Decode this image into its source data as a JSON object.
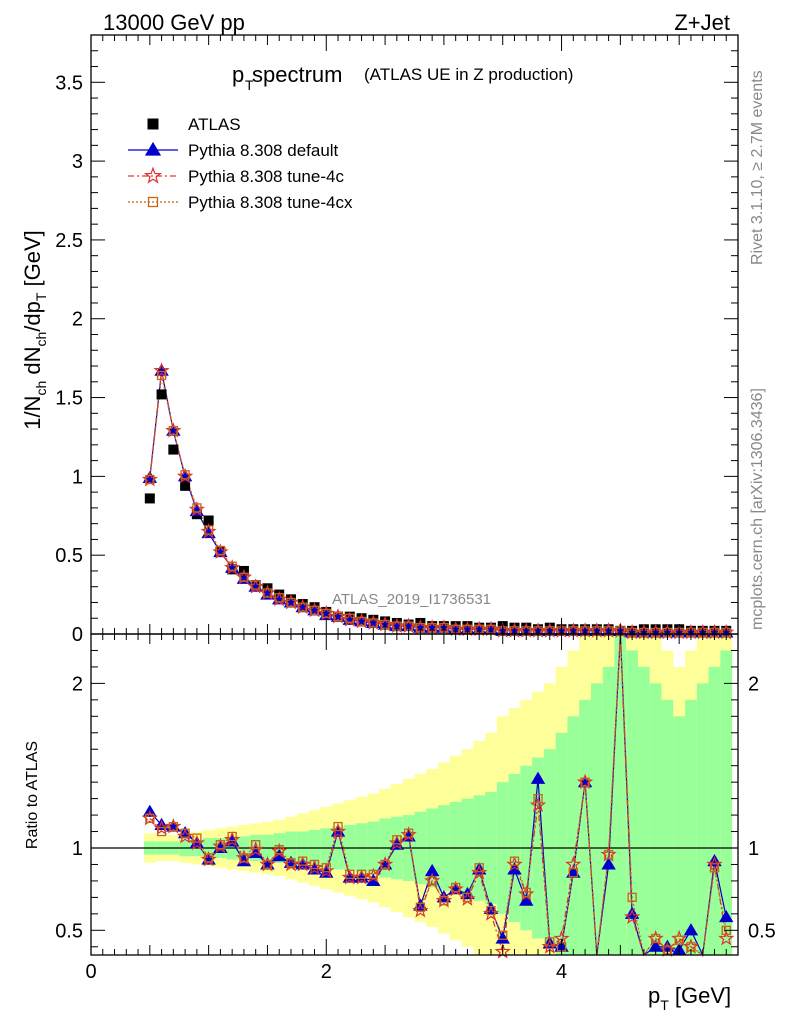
{
  "header": {
    "energy_label": "13000 GeV pp",
    "process_label": "Z+Jet",
    "title_main": "p",
    "title_sub": "T",
    "title_rest": " spectrum",
    "title_note": "(ATLAS UE in Z production)",
    "analysis_id": "ATLAS_2019_I1736531",
    "side_rivet": "Rivet 3.1.10, ≥ 2.7M events",
    "side_mcplots": "mcplots.cern.ch [arXiv:1306.3436]"
  },
  "axes": {
    "ylabel_main": "1/N_ch dN_ch/dp_T [GeV]",
    "ylabel_ratio": "Ratio to ATLAS",
    "xlabel": "p_T [GeV]"
  },
  "legend": {
    "entries": [
      "ATLAS",
      "Pythia 8.308 default",
      "Pythia 8.308 tune-4c",
      "Pythia 8.308 tune-4cx"
    ]
  },
  "colors": {
    "atlas": "#000000",
    "default": "#0000cc",
    "tune4c": "#e03030",
    "tune4cx": "#c86414",
    "band_inner": "#99ff99",
    "band_outer": "#ffff99"
  },
  "chart_data": {
    "type": "scatter",
    "x": [
      0.5,
      0.6,
      0.7,
      0.8,
      0.9,
      1.0,
      1.1,
      1.2,
      1.3,
      1.4,
      1.5,
      1.6,
      1.7,
      1.8,
      1.9,
      2.0,
      2.1,
      2.2,
      2.3,
      2.4,
      2.5,
      2.6,
      2.7,
      2.8,
      2.9,
      3.0,
      3.1,
      3.2,
      3.3,
      3.4,
      3.5,
      3.6,
      3.7,
      3.8,
      3.9,
      4.0,
      4.1,
      4.2,
      4.3,
      4.4,
      4.5,
      4.6,
      4.7,
      4.8,
      4.9,
      5.0,
      5.1,
      5.2,
      5.3,
      5.4
    ],
    "main": {
      "xlim": [
        0,
        5.5
      ],
      "ylim": [
        0,
        3.8
      ],
      "yticks": [
        0,
        0.5,
        1,
        1.5,
        2,
        2.5,
        3,
        3.5
      ],
      "series": [
        {
          "name": "ATLAS",
          "values": [
            0.86,
            1.52,
            1.17,
            0.94,
            0.76,
            0.72,
            0.52,
            0.41,
            0.4,
            0.31,
            0.29,
            0.25,
            0.22,
            0.19,
            0.17,
            0.14,
            0.11,
            0.11,
            0.1,
            0.09,
            0.08,
            0.07,
            0.06,
            0.07,
            0.05,
            0.05,
            0.05,
            0.05,
            0.04,
            0.04,
            0.05,
            0.04,
            0.04,
            0.03,
            0.04,
            0.03,
            0.03,
            0.03,
            0.03,
            0.03,
            0.02,
            0.02,
            0.03,
            0.03,
            0.03,
            0.03,
            0.02,
            0.02,
            0.02,
            0.02
          ]
        },
        {
          "name": "Pythia 8.308 default",
          "values": [
            0.99,
            1.67,
            1.29,
            1.0,
            0.78,
            0.64,
            0.52,
            0.42,
            0.35,
            0.3,
            0.25,
            0.22,
            0.2,
            0.17,
            0.15,
            0.12,
            0.11,
            0.09,
            0.08,
            0.07,
            0.06,
            0.05,
            0.05,
            0.04,
            0.04,
            0.04,
            0.03,
            0.03,
            0.03,
            0.03,
            0.02,
            0.02,
            0.02,
            0.02,
            0.02,
            0.02,
            0.02,
            0.02,
            0.02,
            0.02,
            0.02,
            0.01,
            0.01,
            0.01,
            0.01,
            0.01,
            0.01,
            0.01,
            0.01,
            0.01
          ]
        },
        {
          "name": "Pythia 8.308 tune-4c",
          "values": [
            0.98,
            1.67,
            1.29,
            1.0,
            0.79,
            0.65,
            0.52,
            0.42,
            0.36,
            0.3,
            0.26,
            0.22,
            0.2,
            0.17,
            0.15,
            0.13,
            0.11,
            0.09,
            0.08,
            0.07,
            0.06,
            0.05,
            0.05,
            0.04,
            0.04,
            0.04,
            0.03,
            0.03,
            0.03,
            0.03,
            0.02,
            0.02,
            0.02,
            0.02,
            0.02,
            0.02,
            0.02,
            0.02,
            0.02,
            0.02,
            0.02,
            0.01,
            0.01,
            0.01,
            0.01,
            0.01,
            0.01,
            0.01,
            0.01,
            0.01
          ]
        },
        {
          "name": "Pythia 8.308 tune-4cx",
          "values": [
            0.98,
            1.64,
            1.29,
            1.01,
            0.8,
            0.66,
            0.53,
            0.43,
            0.36,
            0.31,
            0.26,
            0.23,
            0.2,
            0.17,
            0.15,
            0.13,
            0.11,
            0.1,
            0.08,
            0.07,
            0.06,
            0.05,
            0.05,
            0.04,
            0.04,
            0.04,
            0.03,
            0.03,
            0.03,
            0.03,
            0.02,
            0.02,
            0.02,
            0.02,
            0.02,
            0.02,
            0.02,
            0.02,
            0.02,
            0.02,
            0.02,
            0.01,
            0.01,
            0.01,
            0.01,
            0.01,
            0.01,
            0.01,
            0.01,
            0.01
          ]
        }
      ]
    },
    "ratio": {
      "ylim": [
        0.35,
        2.3
      ],
      "yticks": [
        0.5,
        1,
        2
      ],
      "xticks": [
        0,
        2,
        4
      ],
      "band_inner": [
        0.04,
        0.04,
        0.04,
        0.05,
        0.05,
        0.06,
        0.06,
        0.07,
        0.07,
        0.08,
        0.08,
        0.09,
        0.1,
        0.1,
        0.11,
        0.12,
        0.13,
        0.14,
        0.15,
        0.16,
        0.18,
        0.19,
        0.2,
        0.22,
        0.24,
        0.26,
        0.28,
        0.3,
        0.32,
        0.34,
        0.4,
        0.45,
        0.5,
        0.55,
        0.6,
        0.7,
        0.8,
        0.9,
        1.0,
        1.1,
        1.3,
        1.2,
        1.1,
        1.0,
        0.9,
        0.8,
        0.9,
        1.0,
        1.1,
        1.2
      ],
      "band_outer": [
        0.09,
        0.08,
        0.08,
        0.09,
        0.1,
        0.11,
        0.12,
        0.13,
        0.14,
        0.15,
        0.16,
        0.17,
        0.19,
        0.21,
        0.23,
        0.25,
        0.27,
        0.29,
        0.31,
        0.33,
        0.36,
        0.39,
        0.42,
        0.45,
        0.48,
        0.52,
        0.56,
        0.6,
        0.65,
        0.7,
        0.8,
        0.85,
        0.9,
        0.95,
        1.0,
        1.1,
        1.2,
        1.3,
        1.4,
        1.5,
        1.6,
        1.5,
        1.4,
        1.3,
        1.2,
        1.1,
        1.2,
        1.3,
        1.4,
        1.5
      ],
      "series": [
        {
          "name": "Pythia 8.308 default",
          "values": [
            1.22,
            1.14,
            1.13,
            1.09,
            1.03,
            0.93,
            1.0,
            1.04,
            0.92,
            0.97,
            0.9,
            0.95,
            0.91,
            0.9,
            0.87,
            0.85,
            1.1,
            0.82,
            0.82,
            0.8,
            0.9,
            1.02,
            1.07,
            0.65,
            0.86,
            0.7,
            0.75,
            0.72,
            0.87,
            0.63,
            0.45,
            0.87,
            0.68,
            1.42,
            0.42,
            0.4,
            0.85,
            1.4,
            0.2,
            0.9,
            2.4,
            0.6,
            0.2,
            0.4,
            0.4,
            0.38,
            0.5,
            0.3,
            0.92,
            0.58
          ]
        },
        {
          "name": "Pythia 8.308 tune-4c",
          "values": [
            1.18,
            1.12,
            1.13,
            1.07,
            1.03,
            0.93,
            1.01,
            1.05,
            0.94,
            0.99,
            0.9,
            0.98,
            0.9,
            0.9,
            0.88,
            0.86,
            1.1,
            0.82,
            0.82,
            0.83,
            0.9,
            1.03,
            1.08,
            0.62,
            0.8,
            0.68,
            0.75,
            0.69,
            0.85,
            0.6,
            0.37,
            0.9,
            0.72,
            1.26,
            0.4,
            0.45,
            0.9,
            1.4,
            0.15,
            0.96,
            2.4,
            0.58,
            0.15,
            0.45,
            0.38,
            0.45,
            0.4,
            0.25,
            0.9,
            0.45
          ]
        },
        {
          "name": "Pythia 8.308 tune-4cx",
          "values": [
            1.18,
            1.1,
            1.13,
            1.09,
            1.06,
            0.94,
            1.02,
            1.07,
            0.94,
            1.02,
            0.9,
            0.99,
            0.91,
            0.92,
            0.9,
            0.88,
            1.13,
            0.84,
            0.84,
            0.84,
            0.9,
            1.05,
            1.09,
            0.64,
            0.8,
            0.68,
            0.76,
            0.7,
            0.88,
            0.62,
            0.47,
            0.92,
            0.73,
            1.3,
            0.43,
            0.4,
            0.85,
            1.4,
            0.15,
            0.96,
            2.4,
            0.7,
            0.15,
            0.45,
            0.38,
            0.44,
            0.4,
            0.25,
            0.88,
            0.5
          ]
        }
      ]
    }
  }
}
